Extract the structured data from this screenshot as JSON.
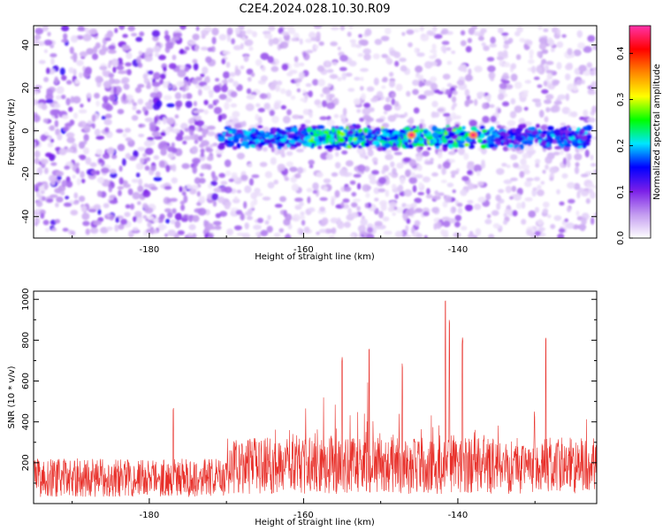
{
  "title": "C2E4.2024.028.10.30.R09",
  "chart_data": [
    {
      "type": "heatmap",
      "xlabel": "Height of straight line (km)",
      "ylabel": "Frequency (Hz)",
      "xlim": [
        -195,
        -122
      ],
      "ylim": [
        -50,
        49
      ],
      "x_ticks": [
        "-180",
        "-160",
        "-140"
      ],
      "y_ticks": [
        "40",
        "20",
        "0",
        "-20",
        "-40"
      ],
      "colorbar": {
        "label": "Normalized spectral amplitude",
        "range": [
          0,
          0.46
        ],
        "ticks": [
          "0.0",
          "0.1",
          "0.2",
          "0.3",
          "0.4"
        ],
        "colormap": [
          "#ffffff",
          "#c39bf0",
          "#7b1fe8",
          "#0000ff",
          "#00e5ff",
          "#00ff00",
          "#ffff00",
          "#ff8800",
          "#ff0000",
          "#ff33aa"
        ]
      },
      "features": {
        "background_noise_x_range": [
          -195,
          -122
        ],
        "band_x_range": [
          -171,
          -123
        ],
        "band_center_frequency": -3,
        "band_half_width": 6,
        "peak_x": [
          -146,
          -138
        ],
        "peak_amplitude": 0.45
      }
    },
    {
      "type": "line",
      "xlabel": "Height of straight line (km)",
      "ylabel": "SNR (10 * v/v)",
      "xlim": [
        -195,
        -122
      ],
      "ylim": [
        0,
        1040
      ],
      "x_ticks": [
        "-180",
        "-160",
        "-140"
      ],
      "y_ticks": [
        "200",
        "400",
        "600",
        "800",
        "1000"
      ],
      "color": "#e8302a",
      "series_summary": {
        "baseline_before_-170": 130,
        "baseline_after_-170": 190,
        "peaks": [
          {
            "x": -141.6,
            "y": 1035
          },
          {
            "x": -141.1,
            "y": 920
          },
          {
            "x": -139.4,
            "y": 820
          },
          {
            "x": -128.6,
            "y": 830
          },
          {
            "x": -151.5,
            "y": 780
          },
          {
            "x": -155.0,
            "y": 720
          },
          {
            "x": -147.2,
            "y": 700
          },
          {
            "x": -176.9,
            "y": 470
          }
        ]
      }
    }
  ]
}
